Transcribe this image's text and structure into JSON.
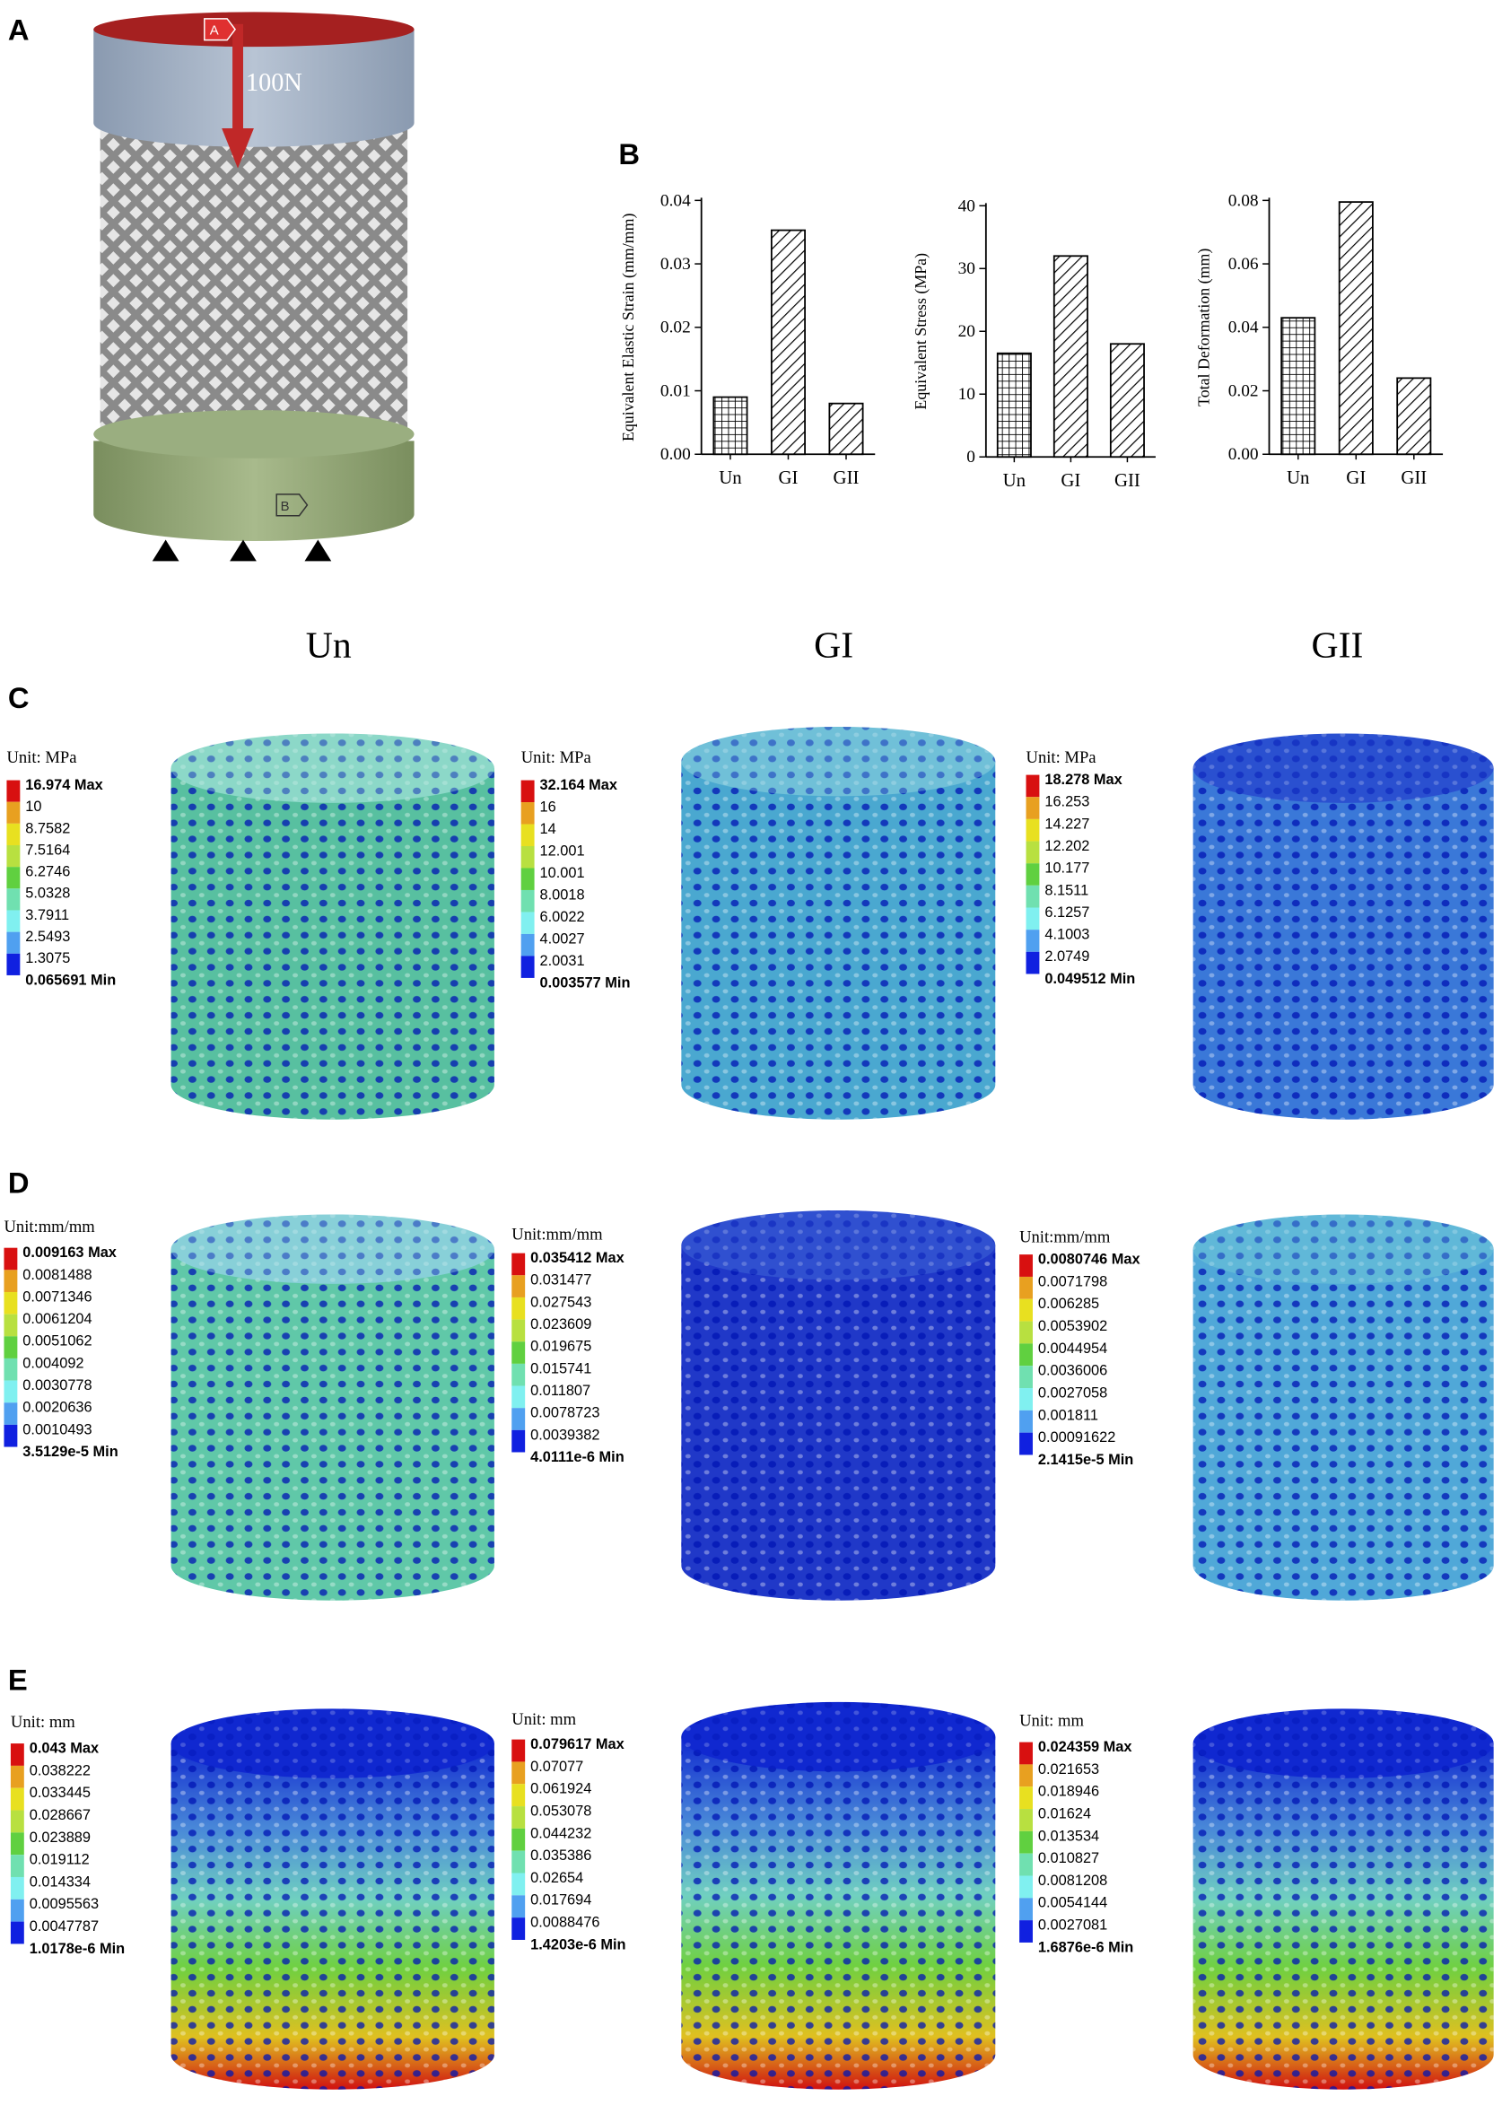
{
  "panel_labels": {
    "a": "A",
    "b": "B",
    "c": "C",
    "d": "D",
    "e": "E"
  },
  "panel_a": {
    "top_tag": "A",
    "bottom_tag": "B",
    "load": "100N"
  },
  "column_headers": [
    "Un",
    "GI",
    "GII"
  ],
  "chart_data": [
    {
      "type": "bar",
      "y_label": "Equivalent Elastic Strain (mm/mm)",
      "categories": [
        "Un",
        "GI",
        "GII"
      ],
      "values": [
        0.009,
        0.0353,
        0.008
      ],
      "patterns": [
        "grid",
        "hatch",
        "hatch"
      ],
      "color": "#000000",
      "ylim": [
        0,
        0.04
      ],
      "yticks": [
        {
          "value": 0,
          "label": "0.00"
        },
        {
          "value": 0.01,
          "label": "0.01"
        },
        {
          "value": 0.02,
          "label": "0.02"
        },
        {
          "value": 0.03,
          "label": "0.03"
        },
        {
          "value": 0.04,
          "label": "0.04"
        }
      ]
    },
    {
      "type": "bar",
      "y_label": "Equivalent Stress (MPa)",
      "categories": [
        "Un",
        "GI",
        "GII"
      ],
      "values": [
        16.5,
        32,
        18
      ],
      "patterns": [
        "grid",
        "hatch",
        "hatch"
      ],
      "color": "#000000",
      "ylim": [
        0,
        40
      ],
      "yticks": [
        0,
        10,
        20,
        30,
        40
      ]
    },
    {
      "type": "bar",
      "y_label": "Total Deformation (mm)",
      "categories": [
        "Un",
        "GI",
        "GII"
      ],
      "values": [
        0.043,
        0.0795,
        0.024
      ],
      "patterns": [
        "grid",
        "hatch",
        "hatch"
      ],
      "color": "#000000",
      "ylim": [
        0,
        0.08
      ],
      "yticks": [
        {
          "value": 0,
          "label": "0.00"
        },
        {
          "value": 0.02,
          "label": "0.02"
        },
        {
          "value": 0.04,
          "label": "0.04"
        },
        {
          "value": 0.06,
          "label": "0.06"
        },
        {
          "value": 0.08,
          "label": "0.08"
        }
      ]
    }
  ],
  "legend_colors": [
    "#d81010",
    "#e8a020",
    "#e8e020",
    "#b8e040",
    "#60d040",
    "#70e0b0",
    "#80f0f0",
    "#50a0f0",
    "#1020e0"
  ],
  "legends": [
    {
      "unit": "Unit: MPa",
      "labels": [
        "16.974 Max",
        "10",
        "8.7582",
        "7.5164",
        "6.2746",
        "5.0328",
        "3.7911",
        "2.5493",
        "1.3075",
        "0.065691 Min"
      ]
    },
    {
      "unit": "Unit: MPa",
      "labels": [
        "32.164 Max",
        "16",
        "14",
        "12.001",
        "10.001",
        "8.0018",
        "6.0022",
        "4.0027",
        "2.0031",
        "0.003577 Min"
      ]
    },
    {
      "unit": "Unit: MPa",
      "labels": [
        "18.278 Max",
        "16.253",
        "14.227",
        "12.202",
        "10.177",
        "8.1511",
        "6.1257",
        "4.1003",
        "2.0749",
        "0.049512 Min"
      ]
    },
    {
      "unit": "Unit:mm/mm",
      "labels": [
        "0.009163 Max",
        "0.0081488",
        "0.0071346",
        "0.0061204",
        "0.0051062",
        "0.004092",
        "0.0030778",
        "0.0020636",
        "0.0010493",
        "3.5129e-5 Min"
      ]
    },
    {
      "unit": "Unit:mm/mm",
      "labels": [
        "0.035412 Max",
        "0.031477",
        "0.027543",
        "0.023609",
        "0.019675",
        "0.015741",
        "0.011807",
        "0.0078723",
        "0.0039382",
        "4.0111e-6 Min"
      ]
    },
    {
      "unit": "Unit:mm/mm",
      "labels": [
        "0.0080746 Max",
        "0.0071798",
        "0.006285",
        "0.0053902",
        "0.0044954",
        "0.0036006",
        "0.0027058",
        "0.001811",
        "0.00091622",
        "2.1415e-5 Min"
      ]
    },
    {
      "unit": "Unit: mm",
      "labels": [
        "0.043 Max",
        "0.038222",
        "0.033445",
        "0.028667",
        "0.023889",
        "0.019112",
        "0.014334",
        "0.0095563",
        "0.0047787",
        "1.0178e-6 Min"
      ]
    },
    {
      "unit": "Unit: mm",
      "labels": [
        "0.079617 Max",
        "0.07077",
        "0.061924",
        "0.053078",
        "0.044232",
        "0.035386",
        "0.02654",
        "0.017694",
        "0.0088476",
        "1.4203e-6 Min"
      ]
    },
    {
      "unit": "Unit: mm",
      "labels": [
        "0.024359 Max",
        "0.021653",
        "0.018946",
        "0.01624",
        "0.013534",
        "0.010827",
        "0.0081208",
        "0.0054144",
        "0.0027081",
        "1.6876e-6 Min"
      ]
    }
  ]
}
